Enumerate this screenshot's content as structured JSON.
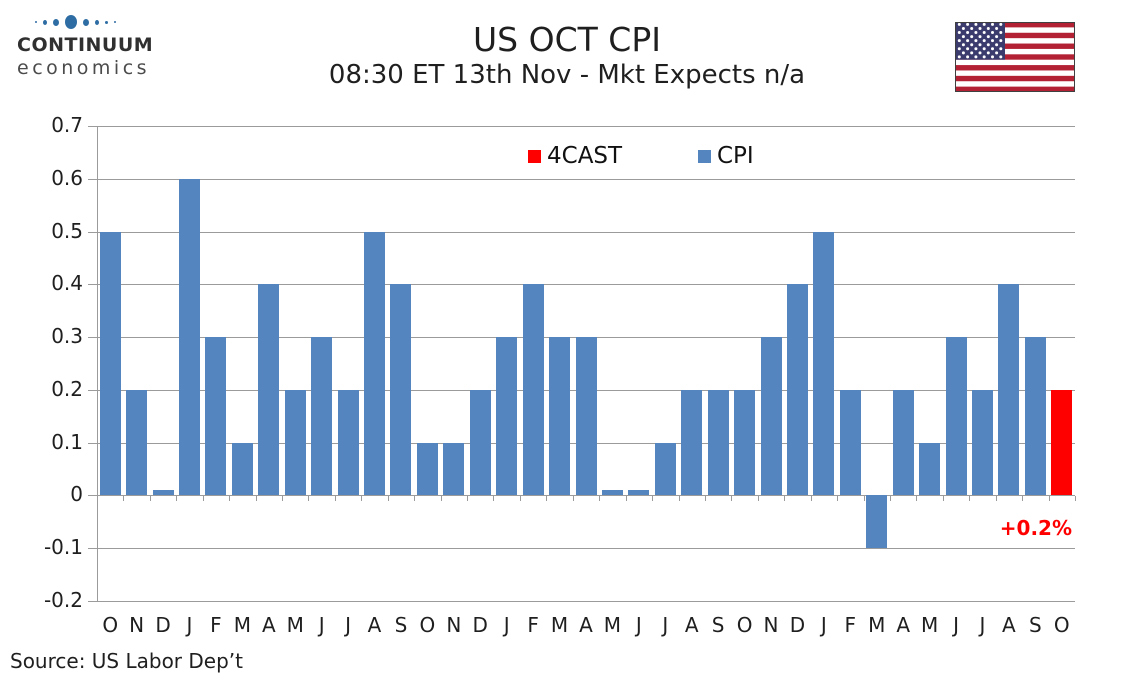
{
  "logo": {
    "line1": "CONTINUUM",
    "line2": "economics",
    "dot_color": "#2E6DA3",
    "dot_sizes": [
      2,
      4,
      6,
      12,
      6,
      4,
      3,
      2
    ]
  },
  "header": {
    "title": "US OCT CPI",
    "subtitle": "08:30 ET 13th Nov - Mkt Expects n/a"
  },
  "flag": {
    "stripe_red": "#B22234",
    "canton_blue": "#3C3B6E",
    "white": "#FFFFFF",
    "border": "#404040"
  },
  "legend": {
    "items": [
      {
        "label": "4CAST",
        "color": "#FF0000"
      },
      {
        "label": "CPI",
        "color": "#5585BE"
      }
    ]
  },
  "annotation": {
    "text": "+0.2%",
    "color": "#FF0000"
  },
  "source": "Source: US Labor Dep’t",
  "chart_data": {
    "type": "bar",
    "title": "US OCT CPI",
    "categories": [
      "O",
      "N",
      "D",
      "J",
      "F",
      "M",
      "A",
      "M",
      "J",
      "J",
      "A",
      "S",
      "O",
      "N",
      "D",
      "J",
      "F",
      "M",
      "A",
      "M",
      "J",
      "J",
      "A",
      "S",
      "O",
      "N",
      "D",
      "J",
      "F",
      "M",
      "A",
      "M",
      "J",
      "J",
      "A",
      "S",
      "O"
    ],
    "series": [
      {
        "name": "CPI",
        "color": "#5585BE",
        "values": [
          0.5,
          0.2,
          0.01,
          0.6,
          0.3,
          0.1,
          0.4,
          0.2,
          0.3,
          0.2,
          0.5,
          0.4,
          0.1,
          0.1,
          0.2,
          0.3,
          0.4,
          0.3,
          0.3,
          0.01,
          0.01,
          0.1,
          0.2,
          0.2,
          0.2,
          0.3,
          0.4,
          0.5,
          0.2,
          -0.1,
          0.2,
          0.1,
          0.3,
          0.2,
          0.4,
          0.3,
          null
        ]
      },
      {
        "name": "4CAST",
        "color": "#FF0000",
        "values": [
          null,
          null,
          null,
          null,
          null,
          null,
          null,
          null,
          null,
          null,
          null,
          null,
          null,
          null,
          null,
          null,
          null,
          null,
          null,
          null,
          null,
          null,
          null,
          null,
          null,
          null,
          null,
          null,
          null,
          null,
          null,
          null,
          null,
          null,
          null,
          null,
          0.2
        ]
      }
    ],
    "ylim": [
      -0.2,
      0.7
    ],
    "ytick_labels": [
      "0.7",
      "0.6",
      "0.5",
      "0.4",
      "0.3",
      "0.2",
      "0.1",
      "0",
      "-0.1",
      "-0.2"
    ],
    "grid": true,
    "legend_position": "top-center-inside"
  }
}
